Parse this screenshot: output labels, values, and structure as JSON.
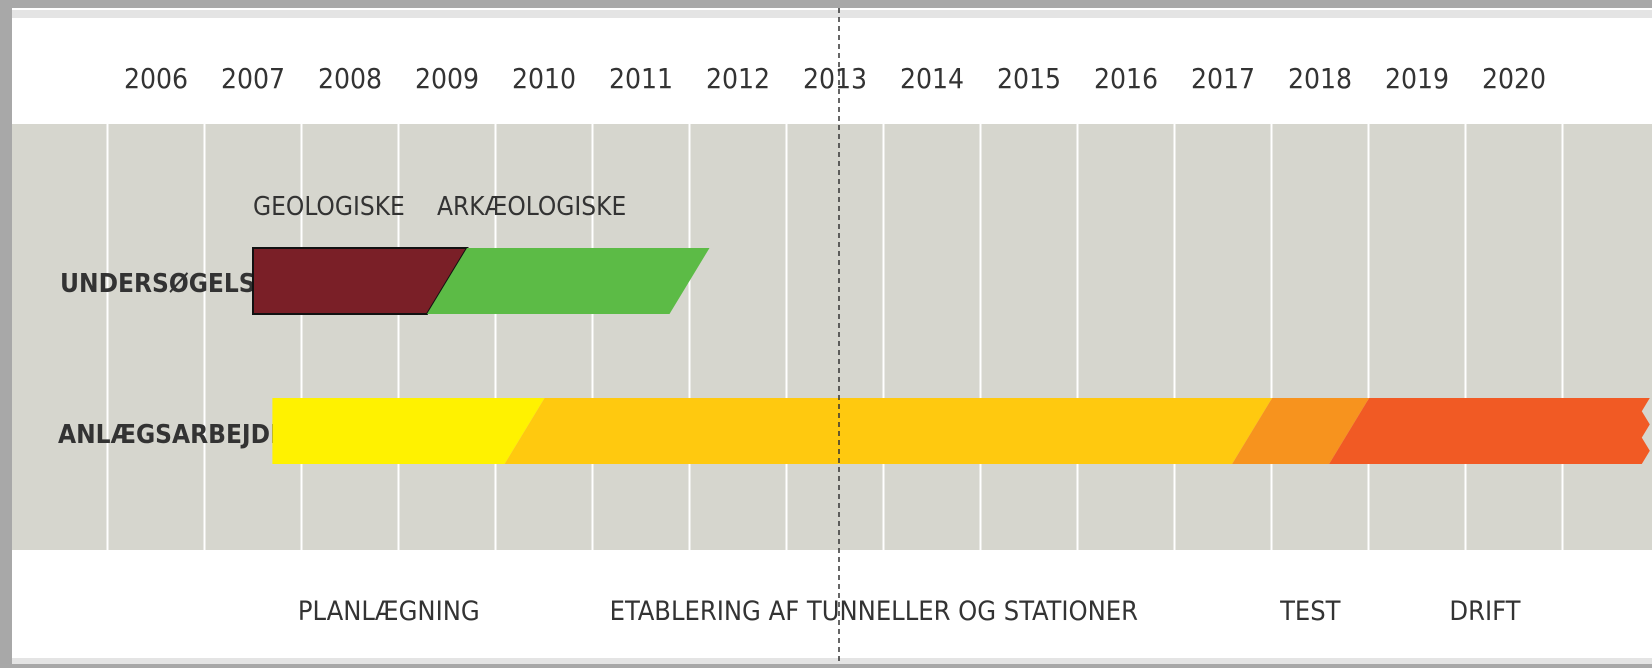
{
  "colors": {
    "frame": "#a8a8a8",
    "header_bg": "#ffffff",
    "band_bg": "#d6d6ce",
    "gridline": "#ffffff",
    "text": "#333333",
    "marker": "#333333"
  },
  "chart_data": {
    "type": "gantt",
    "title": "",
    "x_axis": {
      "years": [
        "2006",
        "2007",
        "2008",
        "2009",
        "2010",
        "2011",
        "2012",
        "2013",
        "2014",
        "2015",
        "2016",
        "2017",
        "2018",
        "2019",
        "2020"
      ],
      "range": [
        2005.5,
        2021.5
      ],
      "grid": true
    },
    "current_marker": {
      "year": 2013
    },
    "rows": [
      {
        "label": "UNDERSØGELSER",
        "segments": [
          {
            "label": "GEOLOGISKE",
            "start": 2007,
            "end": 2009,
            "color": "#7a1f27"
          },
          {
            "label": "ARKÆOLOGISKE",
            "start": 2009,
            "end": 2011.5,
            "color": "#5cbb46"
          }
        ]
      },
      {
        "label": "ANLÆGSARBEJDE",
        "segments": [
          {
            "start": 2007.2,
            "end": 2009.8,
            "color": "#fff200"
          },
          {
            "start": 2009.8,
            "end": 2017.3,
            "color": "#ffc90f"
          },
          {
            "start": 2017.3,
            "end": 2018.3,
            "color": "#f7931e"
          },
          {
            "start": 2018.3,
            "end": 2021.4,
            "color": "#f15a24",
            "open_end": true
          }
        ]
      }
    ],
    "phases": [
      {
        "label": "PLANLÆGNING",
        "center": 2008.4
      },
      {
        "label": "ETABLERING AF TUNNELLER OG STATIONER",
        "center": 2013.4
      },
      {
        "label": "TEST",
        "center": 2017.9
      },
      {
        "label": "DRIFT",
        "center": 2019.7
      }
    ]
  }
}
